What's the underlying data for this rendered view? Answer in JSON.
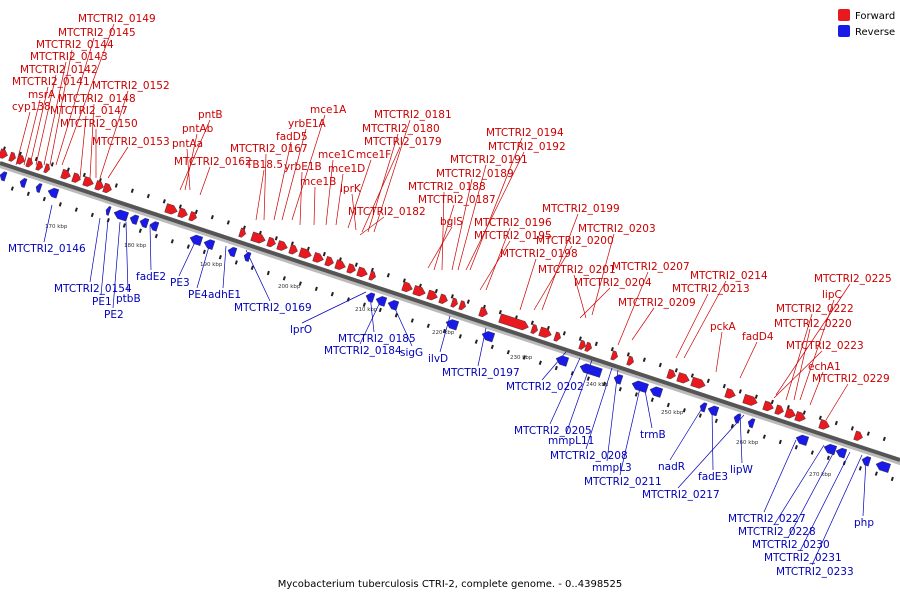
{
  "caption": "Mycobacterium tuberculosis CTRI-2, complete genome. - 0..4398525",
  "legend": {
    "forward": {
      "label": "Forward",
      "color": "#e8191f"
    },
    "reverse": {
      "label": "Reverse",
      "color": "#1a1ae8"
    }
  },
  "colors": {
    "backbone": "#555555",
    "backbone_light": "#bbbbbb",
    "label_forward": "#cc0000",
    "label_reverse": "#0000bb"
  },
  "ticks": [
    "170 kbp",
    "180 kbp",
    "190 kbp",
    "200 kbp",
    "210 kbp",
    "220 kbp",
    "230 kbp",
    "240 kbp",
    "250 kbp",
    "260 kbp",
    "270 kbp"
  ],
  "forward_labels": [
    "MTCTRI2_0149",
    "MTCTRI2_0145",
    "MTCTRI2_0144",
    "MTCTRI2_0143",
    "MTCTRI2_0142",
    "MTCTRI2_0141",
    "msrA",
    "cyp138",
    "MTCTRI2_0152",
    "MTCTRI2_0148",
    "MTCTRI2_0147",
    "MTCTRI2_0150",
    "MTCTRI2_0153",
    "pntB",
    "pntAb",
    "pntAa",
    "MTCTRI2_0162",
    "mce1A",
    "yrbE1A",
    "fadD5",
    "MTCTRI2_0167",
    "TB18.5",
    "yrbE1B",
    "mce1B",
    "mce1C",
    "mce1D",
    "mce1F",
    "lprK",
    "MTCTRI2_0181",
    "MTCTRI2_0180",
    "MTCTRI2_0179",
    "MTCTRI2_0182",
    "MTCTRI2_0194",
    "MTCTRI2_0192",
    "MTCTRI2_0191",
    "MTCTRI2_0189",
    "MTCTRI2_0188",
    "MTCTRI2_0187",
    "bglS",
    "MTCTRI2_0196",
    "MTCTRI2_0195",
    "MTCTRI2_0199",
    "MTCTRI2_0200",
    "MTCTRI2_0198",
    "MTCTRI2_0203",
    "MTCTRI2_0201",
    "MTCTRI2_0204",
    "MTCTRI2_0207",
    "MTCTRI2_0209",
    "MTCTRI2_0214",
    "MTCTRI2_0213",
    "pckA",
    "fadD4",
    "MTCTRI2_0225",
    "lipC",
    "MTCTRI2_0222",
    "MTCTRI2_0220",
    "MTCTRI2_0223",
    "echA1",
    "MTCTRI2_0229"
  ],
  "reverse_labels": [
    "MTCTRI2_0146",
    "MTCTRI2_0154",
    "PE1",
    "PE2",
    "ptbB",
    "fadE2",
    "PE3",
    "PE4",
    "adhE1",
    "MTCTRI2_0169",
    "lprO",
    "MTCTRI2_0185",
    "MTCTRI2_0184",
    "sigG",
    "ilvD",
    "MTCTRI2_0197",
    "MTCTRI2_0202",
    "MTCTRI2_0205",
    "mmpL11",
    "MTCTRI2_0208",
    "mmpL3",
    "trmB",
    "MTCTRI2_0211",
    "nadR",
    "fadE3",
    "lipW",
    "MTCTRI2_0217",
    "MTCTRI2_0227",
    "MTCTRI2_0228",
    "MTCTRI2_0230",
    "MTCTRI2_0231",
    "MTCTRI2_0233",
    "php"
  ]
}
